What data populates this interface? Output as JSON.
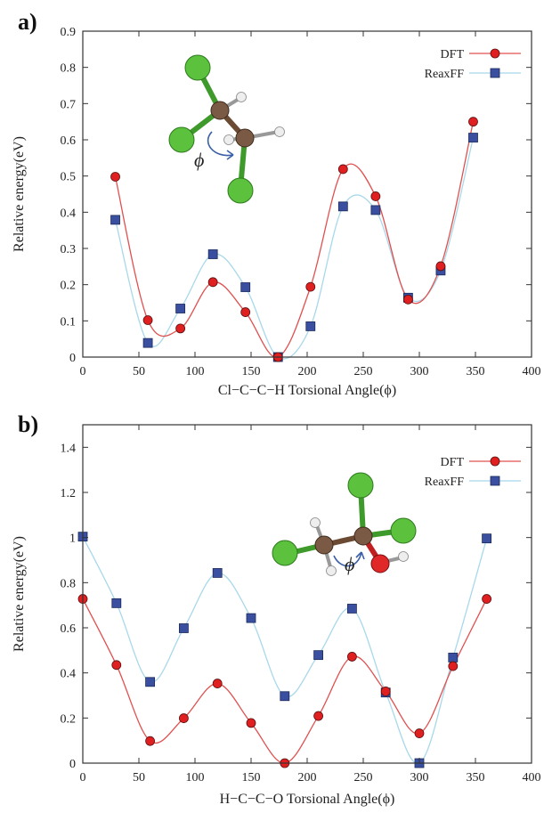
{
  "panels": [
    {
      "letter": "a)"
    },
    {
      "letter": "b)"
    }
  ],
  "chart_data": [
    {
      "type": "scatter",
      "title": "",
      "xlabel": "Cl−C−C−H Torsional Angle(ϕ)",
      "ylabel": "Relative energy(eV)",
      "xlim": [
        0,
        400
      ],
      "ylim": [
        0,
        0.9
      ],
      "xticks": [
        0,
        50,
        100,
        150,
        200,
        250,
        300,
        350,
        400
      ],
      "xtick_labels": [
        "0",
        "50",
        "100",
        "150",
        "200",
        "250",
        "300",
        "350",
        "400"
      ],
      "yticks": [
        0,
        0.1,
        0.2,
        0.3,
        0.4,
        0.5,
        0.6,
        0.7,
        0.8,
        0.9
      ],
      "ytick_labels": [
        "0",
        "0.1",
        "0.2",
        "0.3",
        "0.4",
        "0.5",
        "0.6",
        "0.7",
        "0.8",
        "0.9"
      ],
      "legend_position": "top-right",
      "grid": false,
      "series": [
        {
          "name": "DFT",
          "marker": "circle",
          "color": "#e02020",
          "line_color": "#e05050",
          "x": [
            29,
            58,
            87,
            116,
            145,
            174,
            203,
            232,
            261,
            290,
            319,
            348
          ],
          "y": [
            0.498,
            0.102,
            0.079,
            0.207,
            0.124,
            0.0,
            0.194,
            0.519,
            0.444,
            0.159,
            0.251,
            0.65
          ]
        },
        {
          "name": "ReaxFF",
          "marker": "square",
          "color": "#3a4fa0",
          "line_color": "#a8d8ea",
          "x": [
            29,
            58,
            87,
            116,
            145,
            174,
            203,
            232,
            261,
            290,
            319,
            348
          ],
          "y": [
            0.379,
            0.039,
            0.134,
            0.284,
            0.193,
            0.0,
            0.085,
            0.416,
            0.406,
            0.164,
            0.239,
            0.606
          ]
        }
      ],
      "molecule": {
        "symbol": "ϕ"
      }
    },
    {
      "type": "scatter",
      "title": "",
      "xlabel": "H−C−C−O Torsional Angle(ϕ)",
      "ylabel": "Relative energy(eV)",
      "xlim": [
        0,
        400
      ],
      "ylim": [
        0,
        1.5
      ],
      "xticks": [
        0,
        50,
        100,
        150,
        200,
        250,
        300,
        350,
        400
      ],
      "xtick_labels": [
        "0",
        "50",
        "100",
        "150",
        "200",
        "250",
        "300",
        "350",
        "400"
      ],
      "yticks": [
        0,
        0.2,
        0.4,
        0.6,
        0.8,
        1.0,
        1.2,
        1.4
      ],
      "ytick_labels": [
        "0",
        "0.2",
        "0.4",
        "0.6",
        "0.8",
        "1",
        "1.2",
        "1.4"
      ],
      "legend_position": "top-right",
      "grid": false,
      "series": [
        {
          "name": "DFT",
          "marker": "circle",
          "color": "#e02020",
          "line_color": "#e05050",
          "x": [
            0,
            30,
            60,
            90,
            120,
            150,
            180,
            210,
            240,
            270,
            300,
            330,
            360
          ],
          "y": [
            0.728,
            0.435,
            0.098,
            0.199,
            0.353,
            0.178,
            0.0,
            0.209,
            0.472,
            0.318,
            0.132,
            0.43,
            0.728
          ]
        },
        {
          "name": "ReaxFF",
          "marker": "square",
          "color": "#3a4fa0",
          "line_color": "#a8d8ea",
          "x": [
            0,
            30,
            60,
            90,
            120,
            150,
            180,
            210,
            240,
            270,
            300,
            330,
            360
          ],
          "y": [
            1.004,
            0.709,
            0.36,
            0.598,
            0.843,
            0.643,
            0.297,
            0.479,
            0.685,
            0.313,
            0.0,
            0.468,
            0.996
          ]
        }
      ],
      "molecule": {
        "symbol": "ϕ"
      }
    }
  ]
}
